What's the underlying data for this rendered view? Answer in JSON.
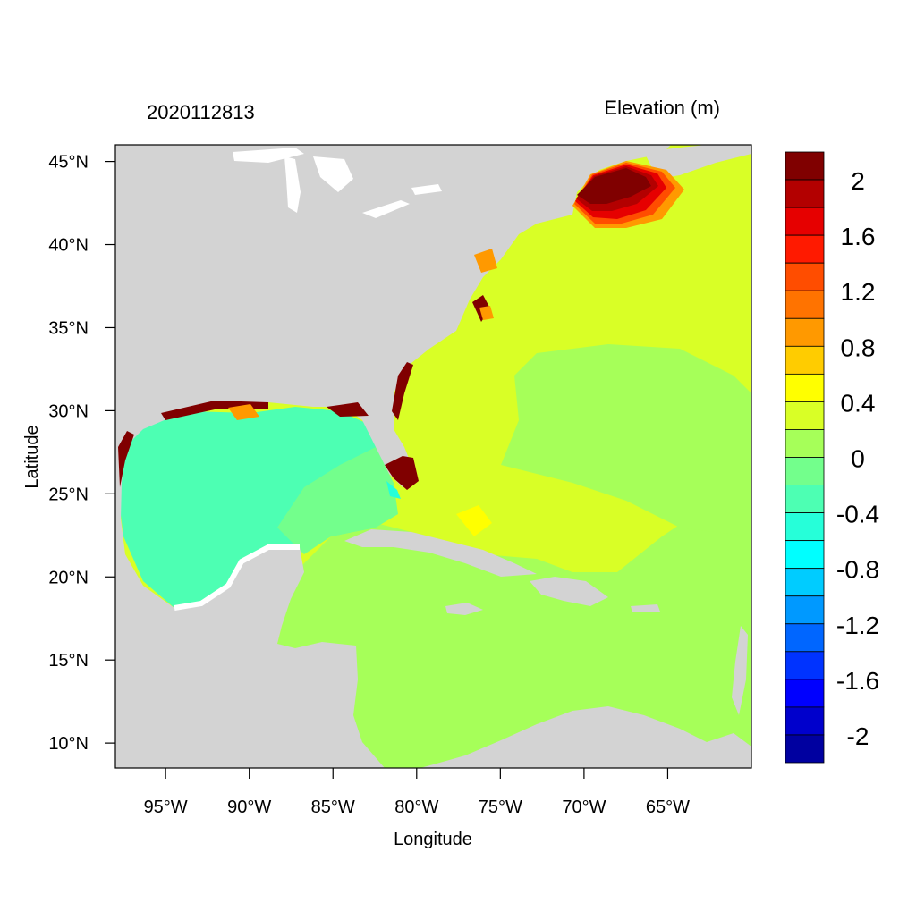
{
  "map": {
    "left_title": "2020112813",
    "right_title": "Elevation (m)",
    "xlabel": "Longitude",
    "ylabel": "Latitude",
    "lon_range": [
      -98,
      -60
    ],
    "lat_range": [
      8.5,
      46
    ],
    "lon_ticks": [
      {
        "value": -95,
        "label": "95°W"
      },
      {
        "value": -90,
        "label": "90°W"
      },
      {
        "value": -85,
        "label": "85°W"
      },
      {
        "value": -80,
        "label": "80°W"
      },
      {
        "value": -75,
        "label": "75°W"
      },
      {
        "value": -70,
        "label": "70°W"
      },
      {
        "value": -65,
        "label": "65°W"
      }
    ],
    "lat_ticks": [
      {
        "value": 45,
        "label": "45°N"
      },
      {
        "value": 40,
        "label": "40°N"
      },
      {
        "value": 35,
        "label": "35°N"
      },
      {
        "value": 30,
        "label": "30°N"
      },
      {
        "value": 25,
        "label": "25°N"
      },
      {
        "value": 20,
        "label": "20°N"
      },
      {
        "value": 15,
        "label": "15°N"
      },
      {
        "value": 10,
        "label": "10°N"
      }
    ],
    "land_color": "#d3d3d3",
    "background_color": "#ffffff"
  },
  "colorbar": {
    "colors_top_to_bottom": [
      "#800000",
      "#b30000",
      "#e60000",
      "#ff1a00",
      "#ff4d00",
      "#ff7300",
      "#ff9900",
      "#ffcc00",
      "#ffff00",
      "#d9ff26",
      "#a6ff59",
      "#73ff8c",
      "#4dffb3",
      "#26ffd9",
      "#00ffff",
      "#00ccff",
      "#0099ff",
      "#0066ff",
      "#0033ff",
      "#0000ff",
      "#0000cc",
      "#0000a0"
    ],
    "labels": [
      {
        "boundary_index": 1,
        "label": "2"
      },
      {
        "boundary_index": 3,
        "label": "1.6"
      },
      {
        "boundary_index": 5,
        "label": "1.2"
      },
      {
        "boundary_index": 7,
        "label": "0.8"
      },
      {
        "boundary_index": 9,
        "label": "0.4"
      },
      {
        "boundary_index": 11,
        "label": "0"
      },
      {
        "boundary_index": 13,
        "label": "-0.4"
      },
      {
        "boundary_index": 15,
        "label": "-0.8"
      },
      {
        "boundary_index": 17,
        "label": "-1.2"
      },
      {
        "boundary_index": 19,
        "label": "-1.6"
      },
      {
        "boundary_index": 21,
        "label": "-2"
      }
    ]
  },
  "field_colors": {
    "atlantic": "#d9ff26",
    "gulf": "#4dffb3",
    "gulf_transition": "#73ff8c",
    "caribbean": "#a6ff59",
    "maine_surge_1": "#ff9900",
    "maine_surge_2": "#ff4d00",
    "maine_surge_3": "#e60000",
    "maine_surge_4": "#b30000",
    "maine_surge_5": "#800000",
    "florida_surge": "#800000",
    "coastal_surge": "#800000",
    "coastal_orange": "#ff9900",
    "bahamas_high": "#ffff00",
    "mid_atlantic_low": "#a6ff59",
    "keys_low": "#26ffd9"
  }
}
